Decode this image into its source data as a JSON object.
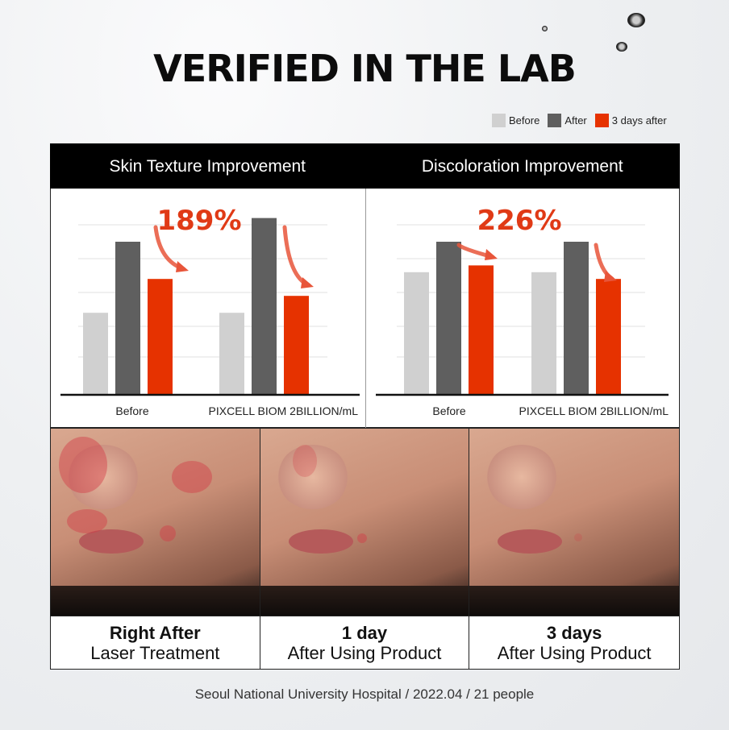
{
  "title": "VERIFIED IN THE LAB",
  "legend": [
    {
      "label": "Before",
      "color": "#d0d0d0"
    },
    {
      "label": "After",
      "color": "#5f5f5f"
    },
    {
      "label": "3 days after",
      "color": "#e63200"
    }
  ],
  "chart_data": [
    {
      "type": "bar",
      "title": "Skin Texture Improvement",
      "annotation": "189%",
      "categories": [
        "Before",
        "PIXCELL BIOM 2BILLION/mL"
      ],
      "series": [
        {
          "name": "Before",
          "values": [
            2.4,
            2.4
          ]
        },
        {
          "name": "After",
          "values": [
            4.5,
            5.2
          ]
        },
        {
          "name": "3 days after",
          "values": [
            3.4,
            2.9
          ]
        }
      ],
      "ylim": [
        0,
        5
      ],
      "grid": true,
      "legend": "top-right"
    },
    {
      "type": "bar",
      "title": "Discoloration Improvement",
      "annotation": "226%",
      "categories": [
        "Before",
        "PIXCELL BIOM 2BILLION/mL"
      ],
      "series": [
        {
          "name": "Before",
          "values": [
            3.6,
            3.6
          ]
        },
        {
          "name": "After",
          "values": [
            4.5,
            4.5
          ]
        },
        {
          "name": "3 days after",
          "values": [
            3.8,
            3.4
          ]
        }
      ],
      "ylim": [
        0,
        5
      ],
      "grid": true,
      "legend": "top-right"
    }
  ],
  "photos": [
    {
      "bold": "Right After",
      "text": "Laser Treatment"
    },
    {
      "bold": "1 day",
      "text": "After Using Product"
    },
    {
      "bold": "3 days",
      "text": "After Using Product"
    }
  ],
  "footer": "Seoul National University Hospital / 2022.04 / 21 people"
}
